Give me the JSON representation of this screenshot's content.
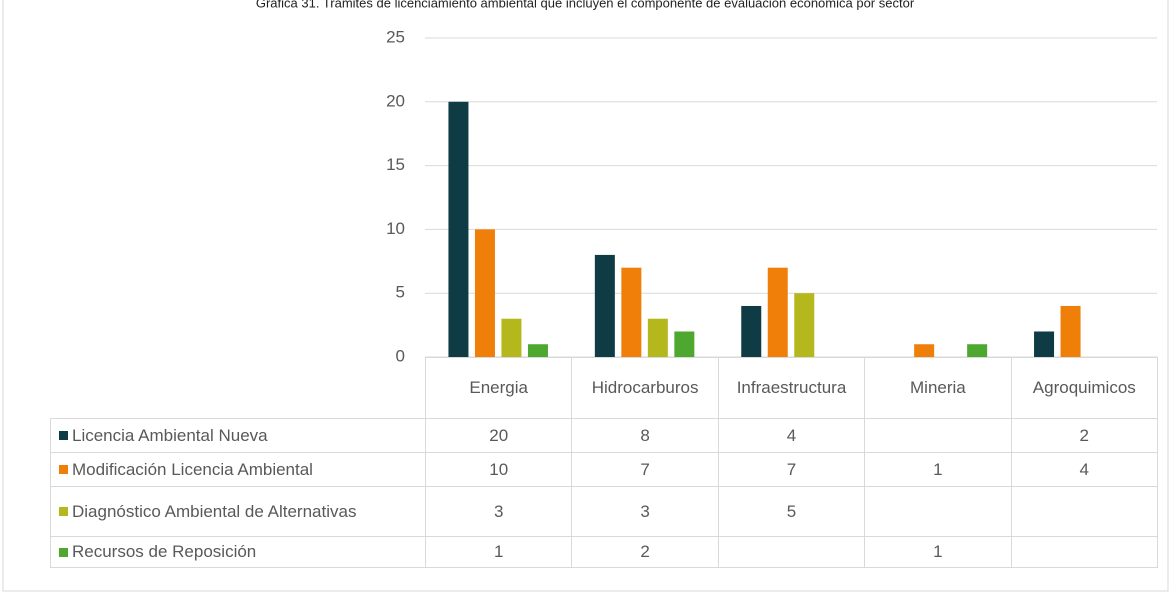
{
  "chart_data": {
    "type": "bar",
    "title": "Gráfica 31. Trámites de licenciamiento ambiental que incluyen el componente de evaluación económica por sector",
    "categories": [
      "Energia",
      "Hidrocarburos",
      "Infraestructura",
      "Mineria",
      "Agroquimicos"
    ],
    "series": [
      {
        "name": "Licencia Ambiental Nueva",
        "color": "#0f3b44",
        "values": [
          20,
          8,
          4,
          null,
          2
        ]
      },
      {
        "name": "Modificación Licencia Ambiental",
        "color": "#f07f09",
        "values": [
          10,
          7,
          7,
          1,
          4
        ]
      },
      {
        "name": "Diagnóstico Ambiental de Alternativas",
        "color": "#b5b81c",
        "values": [
          3,
          3,
          5,
          null,
          null
        ]
      },
      {
        "name": "Recursos de Reposición",
        "color": "#4ea72e",
        "values": [
          1,
          2,
          null,
          1,
          null
        ]
      }
    ],
    "ylim": [
      0,
      25
    ],
    "yticks": [
      0,
      5,
      10,
      15,
      20,
      25
    ],
    "grid": true
  }
}
